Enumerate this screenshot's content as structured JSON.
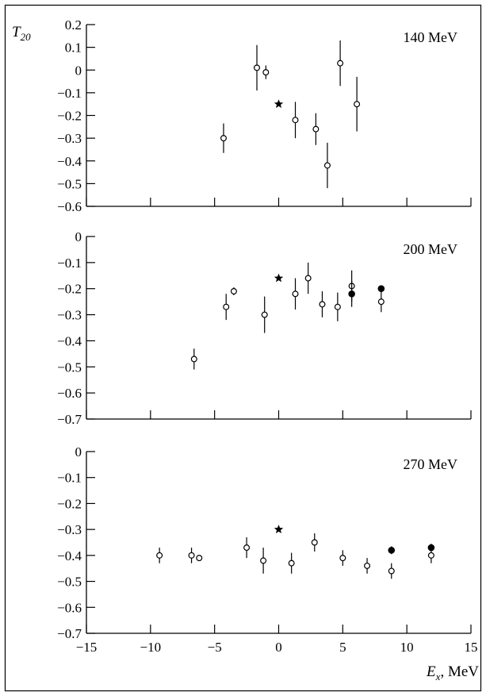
{
  "chart_data": [
    {
      "type": "scatter",
      "ylabel": "T",
      "ylabel_sub": "20",
      "label": "140 MeV",
      "ylim": [
        -0.6,
        0.2
      ],
      "xlim": [
        -15,
        15
      ],
      "yticks": [
        0.2,
        0.1,
        0,
        -0.1,
        -0.2,
        -0.3,
        -0.4,
        -0.5,
        -0.6
      ],
      "ytick_labels": [
        "0.2",
        "0.1",
        "0",
        "-0.1",
        "-0.2",
        "-0.3",
        "-0.4",
        "-0.5",
        "-0.6"
      ],
      "xticks": [
        -15,
        -10,
        -5,
        0,
        5,
        10,
        15
      ],
      "points": [
        {
          "x": -4.3,
          "y": -0.3,
          "err": 0.065,
          "marker": "open"
        },
        {
          "x": -1.7,
          "y": 0.01,
          "err": 0.1,
          "marker": "open"
        },
        {
          "x": -1.0,
          "y": -0.01,
          "err": 0.03,
          "marker": "open"
        },
        {
          "x": 0.0,
          "y": -0.15,
          "err": 0,
          "marker": "star"
        },
        {
          "x": 1.3,
          "y": -0.22,
          "err": 0.08,
          "marker": "open"
        },
        {
          "x": 2.9,
          "y": -0.26,
          "err": 0.07,
          "marker": "open"
        },
        {
          "x": 3.8,
          "y": -0.42,
          "err": 0.1,
          "marker": "open"
        },
        {
          "x": 4.8,
          "y": 0.03,
          "err": 0.1,
          "marker": "open"
        },
        {
          "x": 6.1,
          "y": -0.15,
          "err": 0.12,
          "marker": "open"
        }
      ]
    },
    {
      "type": "scatter",
      "label": "200 MeV",
      "ylim": [
        -0.7,
        0.0
      ],
      "xlim": [
        -15,
        15
      ],
      "yticks": [
        0,
        -0.1,
        -0.2,
        -0.3,
        -0.4,
        -0.5,
        -0.6,
        -0.7
      ],
      "ytick_labels": [
        "0",
        "-0.1",
        "-0.2",
        "-0.3",
        "-0.4",
        "-0.5",
        "-0.6",
        "-0.7"
      ],
      "xticks": [
        -15,
        -10,
        -5,
        0,
        5,
        10,
        15
      ],
      "points": [
        {
          "x": -6.6,
          "y": -0.47,
          "err": 0.04,
          "marker": "open"
        },
        {
          "x": -4.1,
          "y": -0.27,
          "err": 0.05,
          "marker": "open"
        },
        {
          "x": -3.5,
          "y": -0.21,
          "err": 0.015,
          "marker": "open"
        },
        {
          "x": -1.1,
          "y": -0.3,
          "err": 0.07,
          "marker": "open"
        },
        {
          "x": 0.0,
          "y": -0.16,
          "err": 0,
          "marker": "star"
        },
        {
          "x": 1.3,
          "y": -0.22,
          "err": 0.06,
          "marker": "open"
        },
        {
          "x": 2.3,
          "y": -0.16,
          "err": 0.06,
          "marker": "open"
        },
        {
          "x": 3.4,
          "y": -0.26,
          "err": 0.05,
          "marker": "open"
        },
        {
          "x": 4.6,
          "y": -0.27,
          "err": 0.055,
          "marker": "open"
        },
        {
          "x": 5.7,
          "y": -0.19,
          "err": 0.06,
          "marker": "open"
        },
        {
          "x": 5.7,
          "y": -0.22,
          "err": 0.05,
          "marker": "filled"
        },
        {
          "x": 8.0,
          "y": -0.25,
          "err": 0.04,
          "marker": "open"
        },
        {
          "x": 8.0,
          "y": -0.2,
          "err": 0.01,
          "marker": "filled"
        }
      ]
    },
    {
      "type": "scatter",
      "label": "270 MeV",
      "xlabel": "E",
      "xlabel_sub": "x",
      "xlabel_unit": ", MeV",
      "ylim": [
        -0.7,
        0.0
      ],
      "xlim": [
        -15,
        15
      ],
      "yticks": [
        0,
        -0.1,
        -0.2,
        -0.3,
        -0.4,
        -0.5,
        -0.6,
        -0.7
      ],
      "ytick_labels": [
        "0",
        "-0.1",
        "-0.2",
        "-0.3",
        "-0.4",
        "-0.5",
        "-0.6",
        "-0.7"
      ],
      "xticks": [
        -15,
        -10,
        -5,
        0,
        5,
        10,
        15
      ],
      "xtick_labels": [
        "-15",
        "-10",
        "-5",
        "0",
        "5",
        "10",
        "15"
      ],
      "points": [
        {
          "x": -9.3,
          "y": -0.4,
          "err": 0.03,
          "marker": "open"
        },
        {
          "x": -6.8,
          "y": -0.4,
          "err": 0.03,
          "marker": "open"
        },
        {
          "x": -6.2,
          "y": -0.41,
          "err": 0.005,
          "marker": "open"
        },
        {
          "x": -2.5,
          "y": -0.37,
          "err": 0.04,
          "marker": "open"
        },
        {
          "x": -1.2,
          "y": -0.42,
          "err": 0.05,
          "marker": "open"
        },
        {
          "x": 0.0,
          "y": -0.3,
          "err": 0,
          "marker": "star"
        },
        {
          "x": 1.0,
          "y": -0.43,
          "err": 0.04,
          "marker": "open"
        },
        {
          "x": 2.8,
          "y": -0.35,
          "err": 0.035,
          "marker": "open"
        },
        {
          "x": 5.0,
          "y": -0.41,
          "err": 0.03,
          "marker": "open"
        },
        {
          "x": 6.9,
          "y": -0.44,
          "err": 0.03,
          "marker": "open"
        },
        {
          "x": 8.8,
          "y": -0.46,
          "err": 0.03,
          "marker": "open"
        },
        {
          "x": 8.8,
          "y": -0.38,
          "err": 0.015,
          "marker": "filled"
        },
        {
          "x": 11.9,
          "y": -0.4,
          "err": 0.03,
          "marker": "open"
        },
        {
          "x": 11.9,
          "y": -0.37,
          "err": 0.015,
          "marker": "filled"
        }
      ]
    }
  ]
}
